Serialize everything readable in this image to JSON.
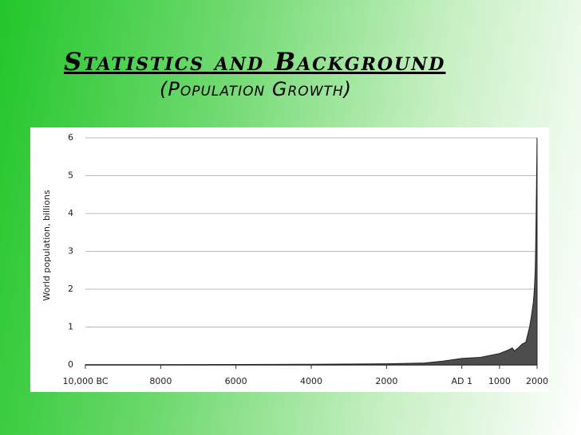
{
  "chart_data": {
    "type": "area",
    "title": "Statistics and Background",
    "subtitle": "(Population Growth)",
    "y_label": "World population, billions",
    "x": [
      -10000,
      -8000,
      -6000,
      -4000,
      -2000,
      -1000,
      -500,
      1,
      500,
      1000,
      1250,
      1340,
      1400,
      1500,
      1600,
      1700,
      1750,
      1800,
      1850,
      1900,
      1927,
      1950,
      1960,
      1975,
      1987,
      1999
    ],
    "values": [
      0.004,
      0.005,
      0.01,
      0.015,
      0.03,
      0.05,
      0.1,
      0.17,
      0.2,
      0.3,
      0.4,
      0.45,
      0.37,
      0.45,
      0.55,
      0.6,
      0.8,
      1.0,
      1.3,
      1.65,
      2.0,
      2.5,
      3.0,
      4.0,
      5.0,
      6.0
    ],
    "color": "#4d4d4d",
    "xlim": [
      -10000,
      2000
    ],
    "xticks": [
      {
        "value": -10000,
        "label": "10,000 BC"
      },
      {
        "value": -8000,
        "label": "8000"
      },
      {
        "value": -6000,
        "label": "6000"
      },
      {
        "value": -4000,
        "label": "4000"
      },
      {
        "value": -2000,
        "label": "2000"
      },
      {
        "value": 1,
        "label": "AD 1"
      },
      1000,
      2000
    ],
    "ylim": [
      0,
      6
    ],
    "yticks": [
      0,
      1,
      2,
      3,
      4,
      5,
      6
    ],
    "grid": true
  }
}
